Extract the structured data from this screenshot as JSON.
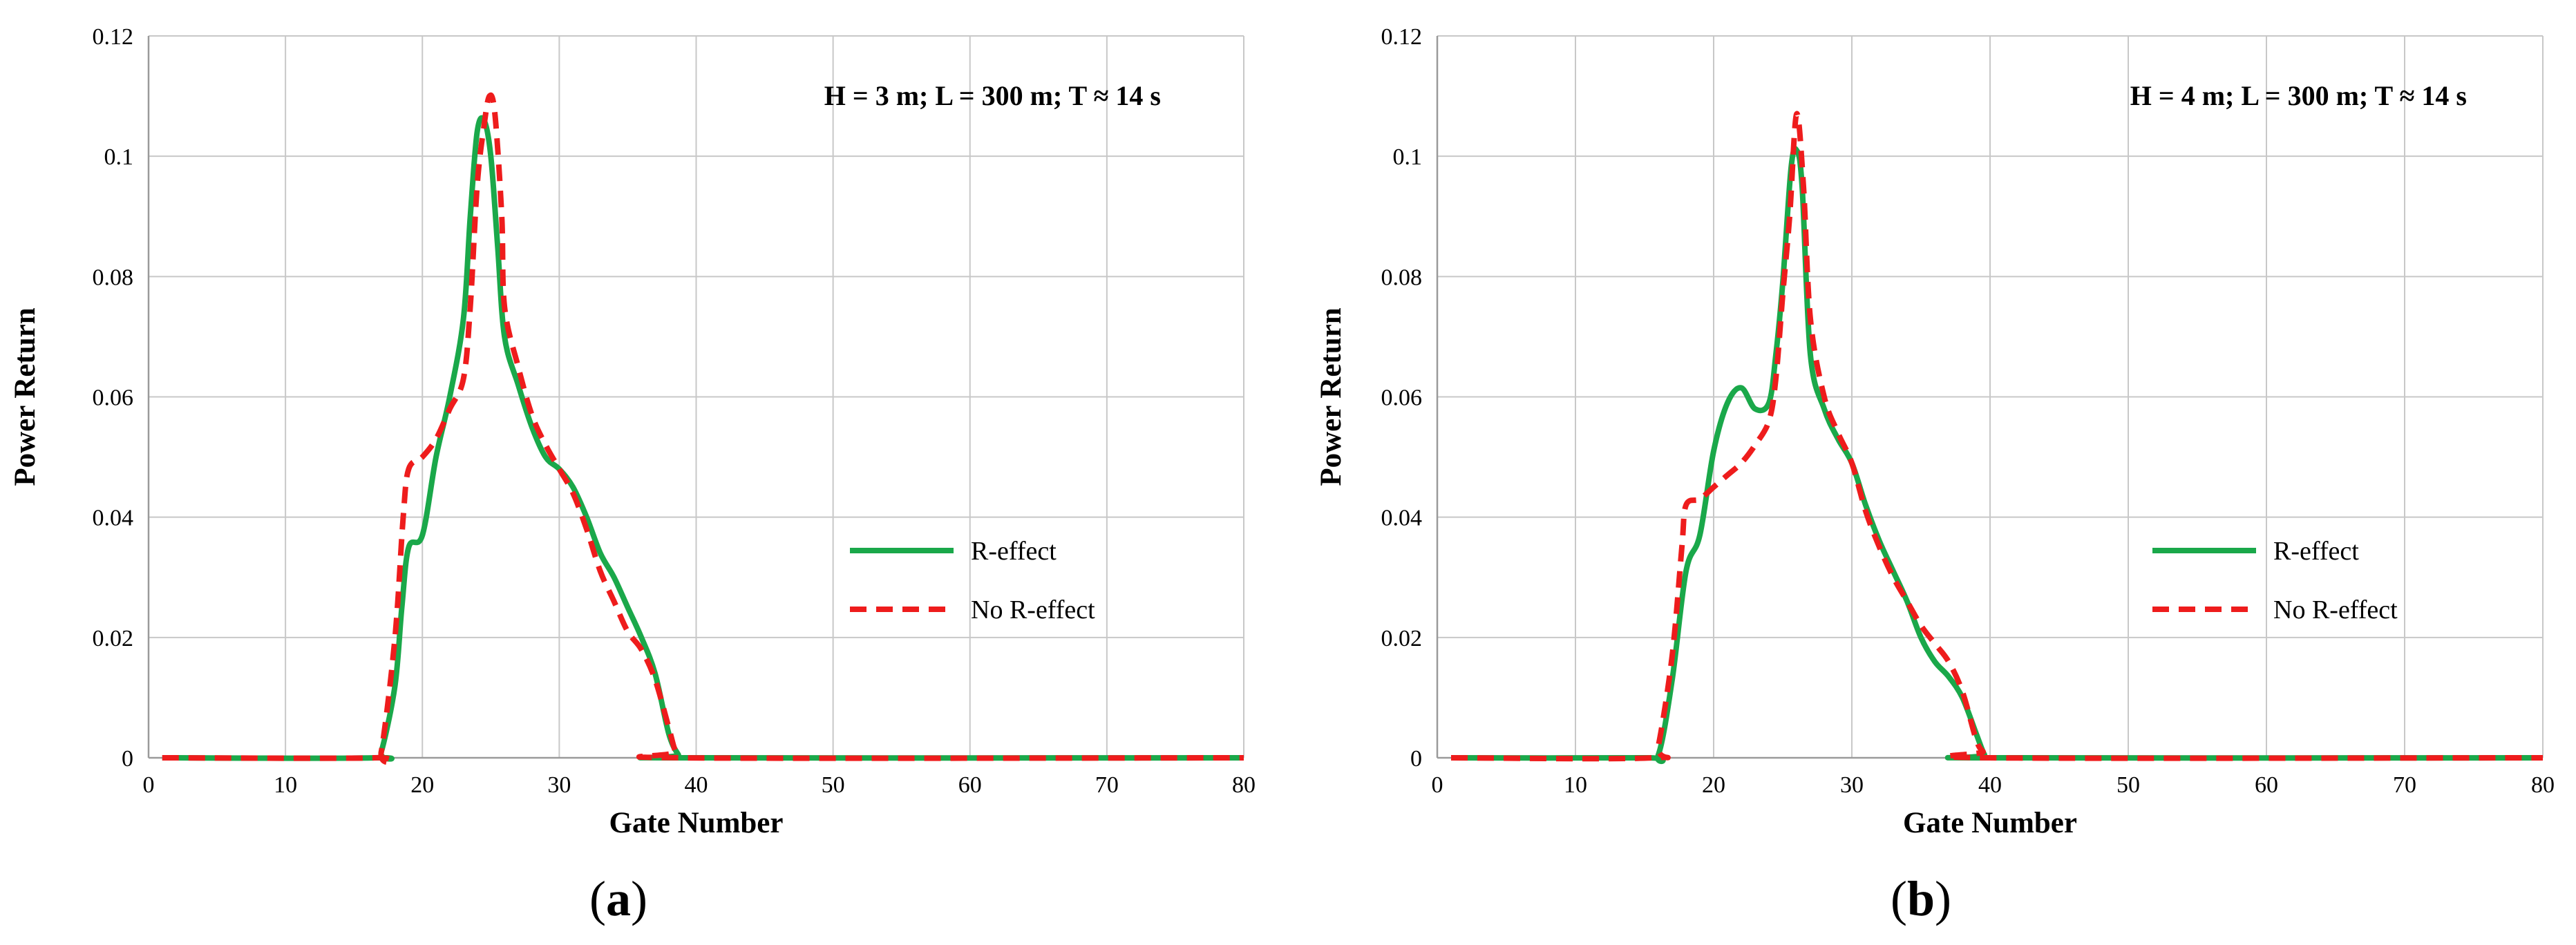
{
  "chart_data": [
    {
      "type": "line",
      "panel_label": "a",
      "annotation": "H = 3 m; L = 300 m; T ≈ 14 s",
      "xlabel": "Gate Number",
      "ylabel": "Power Return",
      "xlim": [
        0,
        80
      ],
      "ylim": [
        0,
        0.12
      ],
      "xticks": [
        0,
        10,
        20,
        30,
        40,
        50,
        60,
        70,
        80
      ],
      "yticks": [
        0,
        0.02,
        0.04,
        0.06,
        0.08,
        0.1,
        0.12
      ],
      "ytick_labels": [
        "0",
        "0.02",
        "0.04",
        "0.06",
        "0.08",
        "0.1",
        "0.12"
      ],
      "grid": true,
      "legend_position": "right",
      "series": [
        {
          "name": "R-effect",
          "color": "#1aa84a",
          "style": "solid",
          "points": [
            [
              1,
              0
            ],
            [
              16.5,
              0
            ],
            [
              17,
              0.001
            ],
            [
              18,
              0.012
            ],
            [
              18.5,
              0.025
            ],
            [
              19,
              0.035
            ],
            [
              20,
              0.037
            ],
            [
              21,
              0.05
            ],
            [
              22,
              0.06
            ],
            [
              23,
              0.073
            ],
            [
              23.5,
              0.09
            ],
            [
              24,
              0.104
            ],
            [
              24.5,
              0.106
            ],
            [
              25,
              0.1
            ],
            [
              25.5,
              0.085
            ],
            [
              26,
              0.07
            ],
            [
              27,
              0.062
            ],
            [
              28,
              0.055
            ],
            [
              29,
              0.05
            ],
            [
              30,
              0.048
            ],
            [
              31,
              0.045
            ],
            [
              32,
              0.04
            ],
            [
              33,
              0.034
            ],
            [
              34,
              0.03
            ],
            [
              35,
              0.025
            ],
            [
              36,
              0.02
            ],
            [
              37,
              0.014
            ],
            [
              38,
              0.004
            ],
            [
              38.7,
              0.0005
            ],
            [
              39,
              0
            ],
            [
              80,
              0
            ]
          ]
        },
        {
          "name": "No R-effect",
          "color": "#ee1c1c",
          "style": "dashed",
          "points": [
            [
              1,
              0
            ],
            [
              16.5,
              0
            ],
            [
              17,
              0.001
            ],
            [
              18,
              0.02
            ],
            [
              18.6,
              0.04
            ],
            [
              19,
              0.048
            ],
            [
              20,
              0.05
            ],
            [
              21,
              0.053
            ],
            [
              22,
              0.058
            ],
            [
              23,
              0.063
            ],
            [
              23.5,
              0.075
            ],
            [
              24,
              0.095
            ],
            [
              24.5,
              0.105
            ],
            [
              24.9,
              0.11
            ],
            [
              25.3,
              0.107
            ],
            [
              25.8,
              0.09
            ],
            [
              26,
              0.075
            ],
            [
              27,
              0.065
            ],
            [
              28,
              0.057
            ],
            [
              29,
              0.052
            ],
            [
              30,
              0.048
            ],
            [
              31,
              0.044
            ],
            [
              32,
              0.038
            ],
            [
              33,
              0.031
            ],
            [
              34,
              0.026
            ],
            [
              35,
              0.021
            ],
            [
              36,
              0.018
            ],
            [
              37,
              0.013
            ],
            [
              38,
              0.005
            ],
            [
              38.5,
              0.001
            ],
            [
              39,
              0
            ],
            [
              80,
              0
            ]
          ]
        }
      ]
    },
    {
      "type": "line",
      "panel_label": "b",
      "annotation": "H = 4 m; L = 300 m; T ≈ 14 s",
      "xlabel": "Gate Number",
      "ylabel": "Power Return",
      "xlim": [
        0,
        80
      ],
      "ylim": [
        0,
        0.12
      ],
      "xticks": [
        0,
        10,
        20,
        30,
        40,
        50,
        60,
        70,
        80
      ],
      "yticks": [
        0,
        0.02,
        0.04,
        0.06,
        0.08,
        0.1,
        0.12
      ],
      "ytick_labels": [
        "0",
        "0.02",
        "0.04",
        "0.06",
        "0.08",
        "0.1",
        "0.12"
      ],
      "grid": true,
      "legend_position": "right",
      "series": [
        {
          "name": "R-effect",
          "color": "#1aa84a",
          "style": "solid",
          "points": [
            [
              1,
              0
            ],
            [
              15,
              0
            ],
            [
              16,
              0.0005
            ],
            [
              17,
              0.013
            ],
            [
              18,
              0.031
            ],
            [
              19,
              0.037
            ],
            [
              20,
              0.051
            ],
            [
              21,
              0.059
            ],
            [
              22,
              0.0615
            ],
            [
              23,
              0.058
            ],
            [
              24,
              0.059
            ],
            [
              24.5,
              0.067
            ],
            [
              25,
              0.079
            ],
            [
              25.6,
              0.098
            ],
            [
              26,
              0.101
            ],
            [
              26.4,
              0.095
            ],
            [
              27,
              0.067
            ],
            [
              28,
              0.058
            ],
            [
              29,
              0.053
            ],
            [
              30,
              0.049
            ],
            [
              31,
              0.042
            ],
            [
              32,
              0.036
            ],
            [
              33,
              0.031
            ],
            [
              34,
              0.026
            ],
            [
              35,
              0.02
            ],
            [
              36,
              0.016
            ],
            [
              37,
              0.0135
            ],
            [
              38,
              0.01
            ],
            [
              39,
              0.004
            ],
            [
              39.6,
              0.0005
            ],
            [
              40,
              0
            ],
            [
              80,
              0
            ]
          ]
        },
        {
          "name": "No R-effect",
          "color": "#ee1c1c",
          "style": "dashed",
          "points": [
            [
              1,
              0
            ],
            [
              15.5,
              0
            ],
            [
              16,
              0.002
            ],
            [
              17,
              0.017
            ],
            [
              17.7,
              0.035
            ],
            [
              18,
              0.042
            ],
            [
              19,
              0.043
            ],
            [
              20,
              0.045
            ],
            [
              21,
              0.047
            ],
            [
              22,
              0.049
            ],
            [
              23,
              0.052
            ],
            [
              24,
              0.056
            ],
            [
              24.5,
              0.063
            ],
            [
              25,
              0.077
            ],
            [
              25.5,
              0.09
            ],
            [
              26,
              0.107
            ],
            [
              26.5,
              0.095
            ],
            [
              27,
              0.073
            ],
            [
              28,
              0.06
            ],
            [
              29,
              0.054
            ],
            [
              30,
              0.049
            ],
            [
              31,
              0.041
            ],
            [
              32,
              0.035
            ],
            [
              33,
              0.03
            ],
            [
              34,
              0.026
            ],
            [
              35,
              0.022
            ],
            [
              36,
              0.019
            ],
            [
              37,
              0.016
            ],
            [
              38,
              0.011
            ],
            [
              39,
              0.003
            ],
            [
              39.5,
              0.001
            ],
            [
              40,
              0
            ],
            [
              80,
              0
            ]
          ]
        }
      ]
    }
  ]
}
